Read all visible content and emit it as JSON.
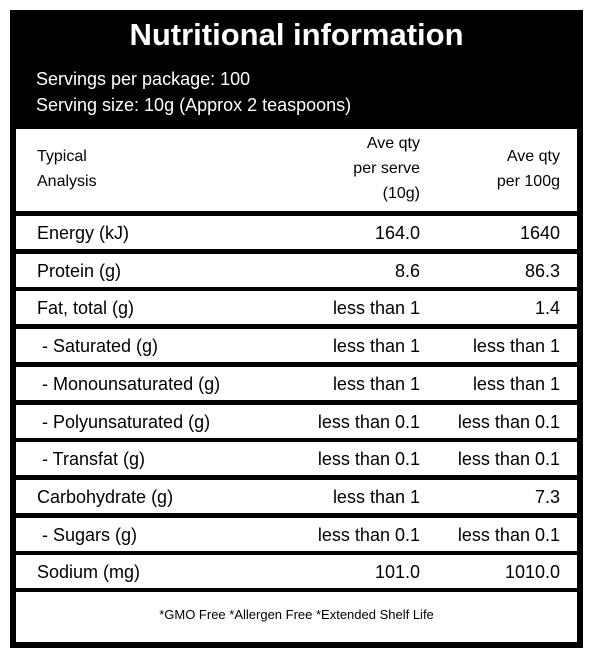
{
  "title": "Nutritional information",
  "servings_per_package": "Servings per package: 100",
  "serving_size": "Serving size: 10g (Approx 2 teaspoons)",
  "table": {
    "headers": {
      "col1_line1": "Typical",
      "col1_line2": "Analysis",
      "col2_line1": "Ave qty",
      "col2_line2": "per serve",
      "col2_line3": "(10g)",
      "col3_line1": "Ave qty",
      "col3_line2": "per 100g"
    },
    "rows": [
      {
        "name": "Energy (kJ)",
        "serve": "164.0",
        "per100": "1640"
      },
      {
        "name": "Protein (g)",
        "serve": "8.6",
        "per100": "86.3"
      },
      {
        "name": "Fat, total (g)",
        "serve": "less than 1",
        "per100": "1.4"
      },
      {
        "name": " - Saturated (g)",
        "serve": "less than 1",
        "per100": "less than 1"
      },
      {
        "name": " - Monounsaturated (g)",
        "serve": "less than 1",
        "per100": "less than 1"
      },
      {
        "name": " - Polyunsaturated (g)",
        "serve": "less than 0.1",
        "per100": "less than 0.1"
      },
      {
        "name": " - Transfat (g)",
        "serve": "less than 0.1",
        "per100": "less than 0.1"
      },
      {
        "name": "Carbohydrate (g)",
        "serve": "less than 1",
        "per100": "7.3"
      },
      {
        "name": " - Sugars (g)",
        "serve": "less than 0.1",
        "per100": "less than 0.1"
      },
      {
        "name": "Sodium (mg)",
        "serve": "101.0",
        "per100": "1010.0"
      }
    ]
  },
  "footnote": "*GMO Free *Allergen Free *Extended Shelf Life"
}
